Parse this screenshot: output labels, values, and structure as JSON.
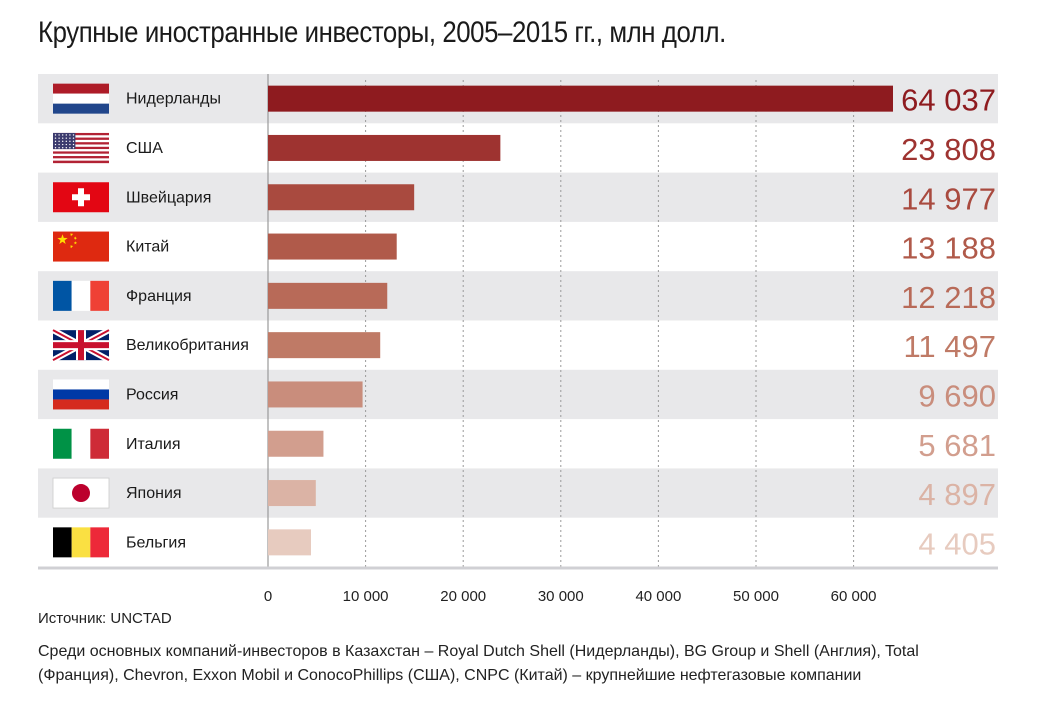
{
  "title": "Крупные иностранные инвесторы, 2005–2015 гг., млн долл.",
  "source": "Источник: UNCTAD",
  "note": "Среди основных компаний-инвесторов в Казахстан – Royal Dutch Shell (Нидерланды), BG Group и Shell (Англия), Total (Франция), Chevron, Exxon Mobil и ConocoPhillips (США), CNPC (Китай) – крупнейшие нефтегазовые компании",
  "chart_data": {
    "type": "bar",
    "orientation": "horizontal",
    "categories": [
      "Нидерланды",
      "США",
      "Швейцария",
      "Китай",
      "Франция",
      "Великобритания",
      "Россия",
      "Италия",
      "Япония",
      "Бельгия"
    ],
    "values": [
      64037,
      23808,
      14977,
      13188,
      12218,
      11497,
      9690,
      5681,
      4897,
      4405
    ],
    "value_labels": [
      "64 037",
      "23 808",
      "14 977",
      "13 188",
      "12 218",
      "11 497",
      "9 690",
      "5 681",
      "4 897",
      "4 405"
    ],
    "flags": [
      "netherlands-flag",
      "usa-flag",
      "switzerland-flag",
      "china-flag",
      "france-flag",
      "uk-flag",
      "russia-flag",
      "italy-flag",
      "japan-flag",
      "belgium-flag"
    ],
    "bar_colors": [
      "#8e1b1f",
      "#9e3330",
      "#a94a3f",
      "#b05a4a",
      "#b86a58",
      "#bf7a66",
      "#c98d7c",
      "#d29e8e",
      "#dbb3a5",
      "#e7cbbf"
    ],
    "xlim": [
      0,
      64037
    ],
    "xticks": [
      0,
      10000,
      20000,
      30000,
      40000,
      50000,
      60000
    ],
    "xtick_labels": [
      "0",
      "10 000",
      "20 000",
      "30 000",
      "40 000",
      "50 000",
      "60 000"
    ],
    "grid": true,
    "row_stripe_color": "#e8e8ea"
  }
}
